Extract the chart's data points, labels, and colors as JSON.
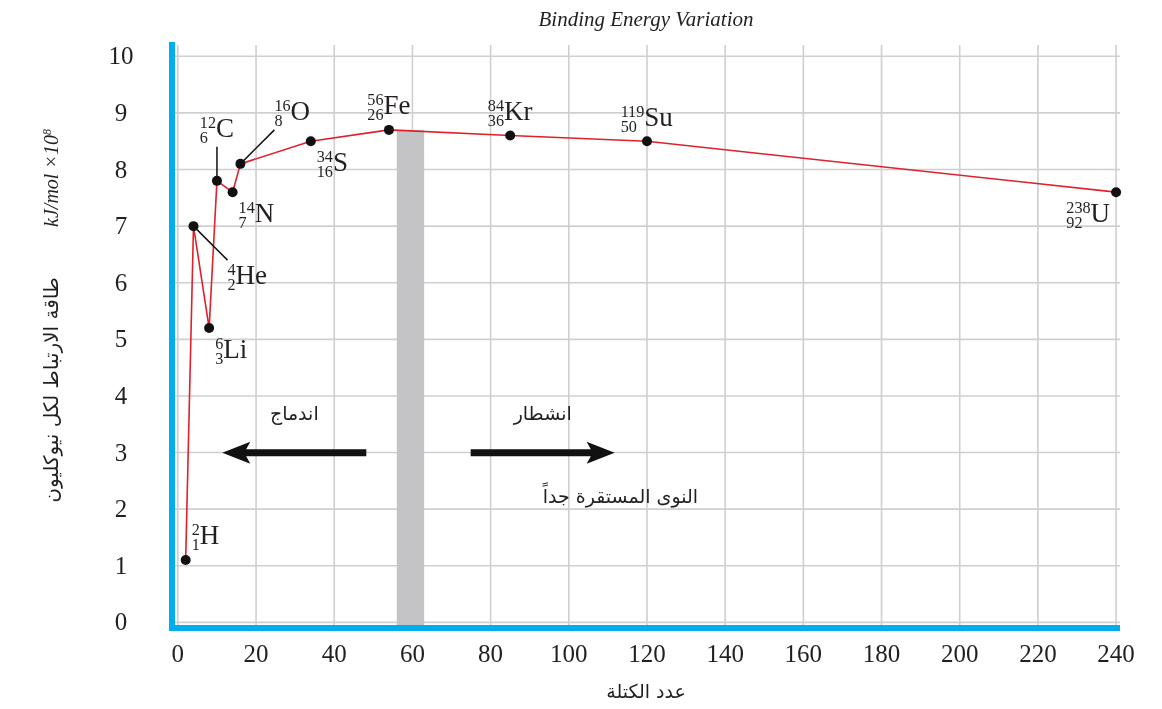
{
  "chart_data": {
    "type": "line",
    "title": "Binding Energy Variation",
    "xlabel": "عدد الكتلة",
    "ylabel": "طاقة الارتباط لكل نيوكليون",
    "x": [
      2,
      4,
      8,
      10,
      14,
      16,
      34,
      54,
      85,
      120,
      240
    ],
    "series": [
      {
        "color": "#e0202a",
        "values": [
          1.1,
          7.0,
          5.2,
          7.8,
          7.6,
          8.1,
          8.5,
          8.7,
          8.6,
          8.5,
          7.6
        ]
      }
    ],
    "xlim": [
      -1.5,
      241
    ],
    "ylim": [
      -0.1,
      10.2
    ],
    "xticks": [
      0,
      20,
      40,
      60,
      80,
      100,
      120,
      140,
      160,
      180,
      200,
      220,
      240
    ],
    "yticks": [
      0,
      1,
      2,
      3,
      4,
      5,
      6,
      7,
      8,
      9,
      10
    ],
    "bands": [
      {
        "axis": "x",
        "from": 56,
        "to": 63,
        "color": "#c4c4c6"
      }
    ],
    "annotations": [
      {
        "text": "$^{2}$$_{1}$H",
        "x": 2,
        "y": 1.1
      },
      {
        "text": "$^{4}$$_{2}$He",
        "x": 4,
        "y": 7.0
      },
      {
        "text": "$^{6}$$_{3}$Li",
        "x": 8,
        "y": 5.2
      },
      {
        "text": "$^{12}$$_{6}$C",
        "x": 10,
        "y": 7.8
      },
      {
        "text": "$^{14}$$_{7}$N",
        "x": 14,
        "y": 7.6
      },
      {
        "text": "$^{16}$$_{8}$O",
        "x": 16,
        "y": 8.1
      },
      {
        "text": "$^{34}$$_{16}$S",
        "x": 34,
        "y": 8.5
      },
      {
        "text": "$^{56}$$_{26}$Fe",
        "x": 54,
        "y": 8.7
      },
      {
        "text": "$^{84}$$_{36}$Kr",
        "x": 85,
        "y": 8.6
      },
      {
        "text": "$^{119}$$_{50}$Su",
        "x": 120,
        "y": 8.5
      },
      {
        "text": "$^{238}$$_{92}$U",
        "x": 240,
        "y": 7.6
      },
      "اندماج",
      "انشطار",
      "النوى المستقرة جداً",
      "kJ/mol ×10$^{8}$"
    ],
    "grid": true,
    "marker": "circle",
    "line_style": "solid"
  }
}
